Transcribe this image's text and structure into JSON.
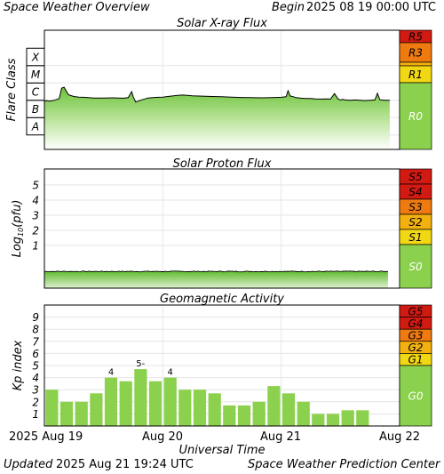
{
  "header": {
    "title": "Space Weather Overview",
    "begin_label": "Begin",
    "begin_date": "2025 08 19 00:00 UTC"
  },
  "footer": {
    "updated_label": "Updated",
    "updated_date": "2025 Aug 21 19:24 UTC",
    "center": "Space Weather Prediction Center"
  },
  "colors": {
    "fill_green": "#8bd14d",
    "grid": "#e6e6e6",
    "r5": "#d11a12",
    "r3": "#ee7a10",
    "r2": "#f2b10e",
    "r1": "#f2d814",
    "r0": "#8bd14d"
  },
  "chart_data": [
    {
      "type": "area",
      "title": "Solar X-ray Flux",
      "ylabel": "Flare Class",
      "y_classes": [
        "A",
        "B",
        "C",
        "M",
        "X"
      ],
      "ylim": [
        -8,
        -3
      ],
      "x_time_labels": [
        "2025 Aug 19",
        "Aug 20",
        "Aug 21",
        "Aug 22"
      ],
      "xlim_hours": [
        0,
        72
      ],
      "series": [
        {
          "hours": [
            0,
            0.5,
            1,
            2,
            3,
            3.5,
            4,
            4.3,
            4.7,
            5,
            6,
            7,
            8,
            10,
            12,
            14,
            15,
            16,
            17,
            17.7,
            18,
            18.5,
            19,
            20,
            21,
            22,
            23,
            24,
            25,
            26,
            27,
            28,
            29,
            30,
            32,
            34,
            36,
            38,
            40,
            42,
            44,
            46,
            48,
            49,
            49.4,
            49.8,
            50.5,
            51,
            52,
            53,
            54,
            55,
            56,
            57,
            58,
            58.8,
            59.5,
            60,
            60.5,
            61,
            62,
            63,
            64,
            65,
            66,
            67,
            67.5,
            68,
            69,
            70
          ],
          "log_flux": [
            -6.05,
            -6.02,
            -6.05,
            -6.0,
            -5.9,
            -5.3,
            -5.25,
            -5.4,
            -5.6,
            -5.7,
            -5.78,
            -5.82,
            -5.83,
            -5.87,
            -5.87,
            -5.86,
            -5.87,
            -5.88,
            -5.85,
            -5.5,
            -5.8,
            -6.1,
            -6.05,
            -5.95,
            -5.87,
            -5.85,
            -5.83,
            -5.82,
            -5.78,
            -5.75,
            -5.72,
            -5.7,
            -5.72,
            -5.74,
            -5.76,
            -5.78,
            -5.8,
            -5.82,
            -5.84,
            -5.85,
            -5.86,
            -5.85,
            -5.83,
            -5.8,
            -5.45,
            -5.75,
            -5.8,
            -5.85,
            -5.88,
            -5.9,
            -5.9,
            -5.92,
            -5.93,
            -5.92,
            -5.93,
            -5.62,
            -5.92,
            -5.98,
            -5.95,
            -5.98,
            -6.0,
            -5.98,
            -6.0,
            -6.02,
            -6.0,
            -5.98,
            -5.6,
            -5.97,
            -6.0,
            -6.0
          ]
        }
      ],
      "scale_labels": [
        "R5",
        "R3",
        "R1",
        "R0"
      ]
    },
    {
      "type": "area",
      "title": "Solar Proton Flux",
      "ylabel": "Log10(pfu)",
      "ylabel_main": "Log",
      "ylabel_sub": "10",
      "ylabel_unit": "(pfu)",
      "y_ticks": [
        "1",
        "2",
        "3",
        "4",
        "5"
      ],
      "ylim": [
        -1,
        5.5
      ],
      "x_time_labels": [
        "2025 Aug 19",
        "Aug 20",
        "Aug 21",
        "Aug 22"
      ],
      "xlim_hours": [
        0,
        72
      ],
      "series": [
        {
          "mean_log_flux": -0.72,
          "noise": 0.03,
          "end_hours": 70
        }
      ],
      "scale_labels": [
        "S5",
        "S4",
        "S3",
        "S2",
        "S1",
        "S0"
      ]
    },
    {
      "type": "bar",
      "title": "Geomagnetic Activity",
      "ylabel": "Kp index",
      "y_ticks": [
        "1",
        "2",
        "3",
        "4",
        "5",
        "6",
        "7",
        "8",
        "9"
      ],
      "ylim": [
        0,
        9.9
      ],
      "interval_hours": 3,
      "values": [
        3.0,
        2.0,
        2.0,
        2.7,
        4.0,
        3.7,
        4.7,
        3.7,
        4.0,
        3.0,
        3.0,
        2.7,
        1.7,
        1.7,
        2.0,
        3.3,
        2.7,
        2.0,
        1.0,
        1.0,
        1.3,
        1.3
      ],
      "bar_labels": [
        {
          "index": 4,
          "text": "4"
        },
        {
          "index": 6,
          "text": "5-"
        },
        {
          "index": 8,
          "text": "4"
        }
      ],
      "x_time_labels": [
        "2025 Aug 19",
        "Aug 20",
        "Aug 21",
        "Aug 22"
      ],
      "xlabel": "Universal Time",
      "scale_labels": [
        "G5",
        "G4",
        "G3",
        "G2",
        "G1",
        "G0"
      ]
    }
  ]
}
